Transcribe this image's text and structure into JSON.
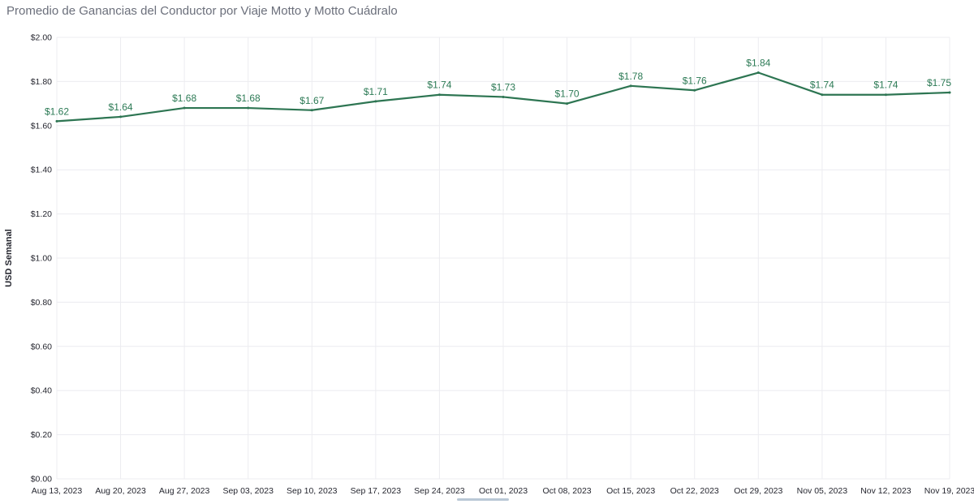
{
  "title": "Promedio de Ganancias del Conductor por Viaje Motto y Motto Cuádralo",
  "chart_data": {
    "type": "line",
    "title": "Promedio de Ganancias del Conductor por Viaje Motto y Motto Cuádralo",
    "xlabel": "",
    "ylabel": "USD Semanal",
    "ylim": [
      0,
      2
    ],
    "yticks": [
      "$0.00",
      "$0.20",
      "$0.40",
      "$0.60",
      "$0.80",
      "$1.00",
      "$1.20",
      "$1.40",
      "$1.60",
      "$1.80",
      "$2.00"
    ],
    "categories": [
      "Aug 13, 2023",
      "Aug 20, 2023",
      "Aug 27, 2023",
      "Sep 03, 2023",
      "Sep 10, 2023",
      "Sep 17, 2023",
      "Sep 24, 2023",
      "Oct 01, 2023",
      "Oct 08, 2023",
      "Oct 15, 2023",
      "Oct 22, 2023",
      "Oct 29, 2023",
      "Nov 05, 2023",
      "Nov 12, 2023",
      "Nov 19, 2023"
    ],
    "series": [
      {
        "values": [
          1.62,
          1.64,
          1.68,
          1.68,
          1.67,
          1.71,
          1.74,
          1.73,
          1.7,
          1.78,
          1.76,
          1.84,
          1.74,
          1.74,
          1.75
        ],
        "labels": [
          "$1.62",
          "$1.64",
          "$1.68",
          "$1.68",
          "$1.67",
          "$1.71",
          "$1.74",
          "$1.73",
          "$1.70",
          "$1.78",
          "$1.76",
          "$1.84",
          "$1.74",
          "$1.74",
          "$1.75"
        ],
        "color": "#2d7552"
      }
    ],
    "grid": true,
    "label_color": "#2c8a5c",
    "grid_color": "#ececf0"
  }
}
